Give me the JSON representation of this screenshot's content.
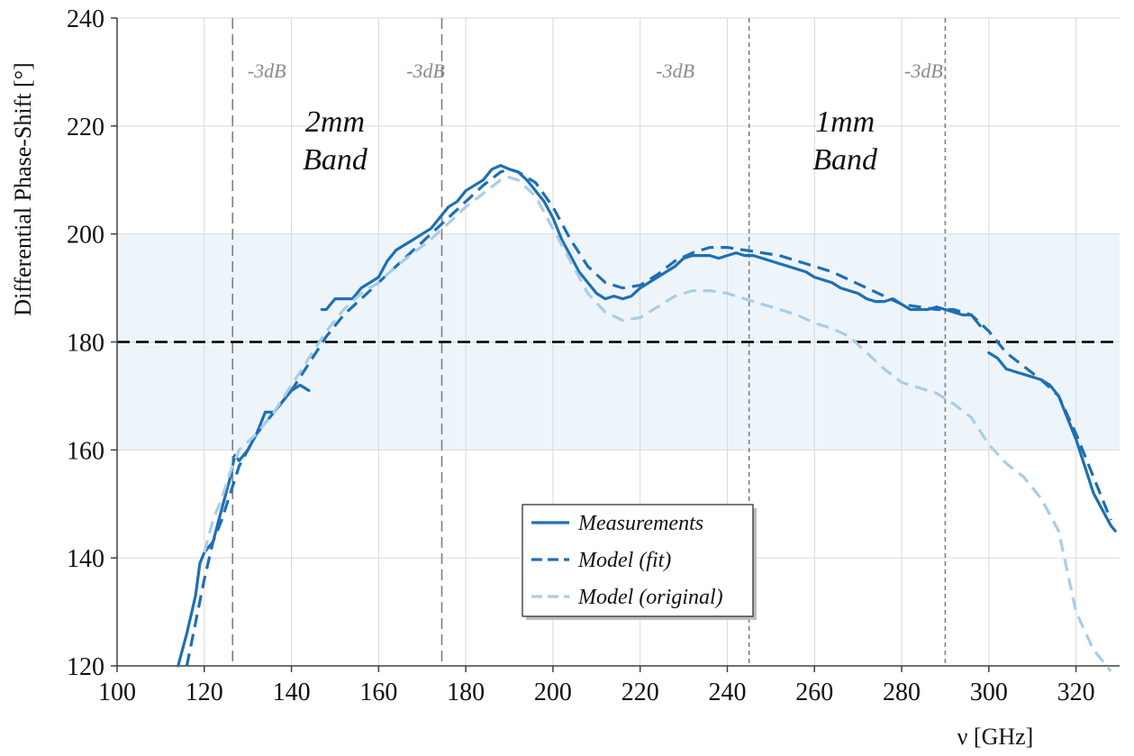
{
  "chart_data": {
    "type": "line",
    "title": "",
    "xlabel": "ν [GHz]",
    "ylabel": "Differential Phase-Shift [°]",
    "xlim": [
      100,
      330
    ],
    "ylim": [
      120,
      240
    ],
    "xticks": [
      100,
      120,
      140,
      160,
      180,
      200,
      220,
      240,
      260,
      280,
      300,
      320
    ],
    "yticks": [
      120,
      140,
      160,
      180,
      200,
      220,
      240
    ],
    "grid": true,
    "shaded_range": [
      160,
      200
    ],
    "reference_line": 180,
    "band_edges": [
      {
        "x": 126.5,
        "label": "-3dB"
      },
      {
        "x": 174.5,
        "label": "-3dB"
      },
      {
        "x": 245,
        "label": "-3dB"
      },
      {
        "x": 290,
        "label": "-3dB"
      }
    ],
    "band_labels": [
      {
        "line1": "2mm",
        "line2": "Band",
        "x": 150,
        "y": 218
      },
      {
        "line1": "1mm",
        "line2": "Band",
        "x": 267,
        "y": 218
      }
    ],
    "legend_position": "bottom-center",
    "series": [
      {
        "name": "Measurements",
        "style": "solid",
        "color": "#1f6fb4",
        "segments": [
          [
            [
              114,
              120
            ],
            [
              116,
              126
            ],
            [
              118,
              133
            ],
            [
              119,
              139
            ],
            [
              120,
              141
            ],
            [
              121,
              142
            ],
            [
              122,
              143
            ],
            [
              124,
              149
            ],
            [
              126,
              155
            ],
            [
              127,
              159
            ],
            [
              128,
              158
            ],
            [
              130,
              160
            ],
            [
              132,
              163
            ],
            [
              134,
              167
            ],
            [
              136,
              167
            ],
            [
              138,
              169
            ],
            [
              140,
              171
            ],
            [
              142,
              172
            ],
            [
              144,
              171
            ]
          ],
          [
            [
              147,
              186
            ],
            [
              148,
              186
            ],
            [
              150,
              188
            ],
            [
              152,
              188
            ],
            [
              154,
              188
            ],
            [
              156,
              190
            ],
            [
              158,
              191
            ],
            [
              160,
              192
            ],
            [
              162,
              195
            ],
            [
              164,
              197
            ],
            [
              166,
              198
            ],
            [
              168,
              199
            ],
            [
              170,
              200
            ],
            [
              172,
              201
            ],
            [
              174,
              203
            ],
            [
              176,
              205
            ],
            [
              178,
              206
            ],
            [
              180,
              208
            ],
            [
              182,
              209
            ],
            [
              184,
              210
            ],
            [
              186,
              212
            ],
            [
              188,
              212.7
            ],
            [
              190,
              212
            ],
            [
              192,
              211.5
            ],
            [
              194,
              210
            ],
            [
              196,
              208
            ],
            [
              198,
              206
            ],
            [
              200,
              203
            ],
            [
              202,
              199
            ],
            [
              204,
              196
            ],
            [
              206,
              193
            ],
            [
              208,
              191
            ],
            [
              210,
              189
            ],
            [
              212,
              188
            ],
            [
              214,
              188.5
            ],
            [
              216,
              188
            ],
            [
              218,
              188.5
            ],
            [
              220,
              190
            ],
            [
              222,
              191
            ],
            [
              224,
              192
            ],
            [
              226,
              193
            ],
            [
              228,
              194
            ],
            [
              230,
              195.5
            ],
            [
              232,
              196
            ],
            [
              234,
              196
            ],
            [
              236,
              196
            ],
            [
              238,
              195.5
            ],
            [
              240,
              196
            ],
            [
              242,
              196.5
            ],
            [
              244,
              196
            ],
            [
              246,
              196
            ],
            [
              248,
              195.5
            ],
            [
              250,
              195
            ],
            [
              252,
              194.5
            ],
            [
              254,
              194
            ],
            [
              256,
              193.5
            ],
            [
              258,
              193
            ],
            [
              260,
              192
            ],
            [
              262,
              191.5
            ],
            [
              264,
              191
            ],
            [
              266,
              190
            ],
            [
              268,
              189.5
            ],
            [
              270,
              189
            ],
            [
              272,
              188
            ],
            [
              274,
              187.5
            ],
            [
              276,
              187.5
            ],
            [
              278,
              188
            ],
            [
              280,
              187
            ],
            [
              282,
              186
            ],
            [
              284,
              186
            ],
            [
              286,
              186
            ],
            [
              288,
              186.5
            ],
            [
              290,
              186
            ],
            [
              292,
              185.5
            ],
            [
              294,
              185
            ],
            [
              296,
              185
            ],
            [
              298,
              183
            ]
          ],
          [
            [
              300,
              178
            ],
            [
              302,
              177
            ],
            [
              304,
              175
            ],
            [
              306,
              174.5
            ],
            [
              308,
              174
            ],
            [
              310,
              173.5
            ],
            [
              312,
              173
            ],
            [
              314,
              172
            ],
            [
              316,
              170
            ],
            [
              318,
              166
            ],
            [
              320,
              162
            ],
            [
              322,
              157
            ],
            [
              324,
              152
            ],
            [
              326,
              149
            ],
            [
              328,
              146
            ],
            [
              329,
              145
            ]
          ]
        ]
      },
      {
        "name": "Model (fit)",
        "style": "dashed",
        "color": "#1f6fb4",
        "segments": [
          [
            [
              116,
              120
            ],
            [
              118,
              128
            ],
            [
              120,
              136
            ],
            [
              122,
              143
            ],
            [
              124,
              147
            ],
            [
              126,
              152
            ],
            [
              128,
              157
            ],
            [
              130,
              160
            ],
            [
              132,
              163
            ],
            [
              136,
              167
            ],
            [
              140,
              171
            ],
            [
              144,
              176
            ],
            [
              148,
              181
            ],
            [
              152,
              185
            ],
            [
              156,
              188
            ],
            [
              160,
              191
            ],
            [
              164,
              194
            ],
            [
              168,
              197
            ],
            [
              172,
              200
            ],
            [
              176,
              203
            ],
            [
              180,
              206
            ],
            [
              184,
              209
            ],
            [
              188,
              211.5
            ],
            [
              190,
              212
            ],
            [
              192,
              211.5
            ],
            [
              196,
              209.5
            ],
            [
              200,
              205
            ],
            [
              204,
              199
            ],
            [
              208,
              194
            ],
            [
              212,
              191
            ],
            [
              216,
              190
            ],
            [
              220,
              190.5
            ],
            [
              224,
              192.5
            ],
            [
              228,
              195
            ],
            [
              232,
              196.5
            ],
            [
              236,
              197.5
            ],
            [
              240,
              197.5
            ],
            [
              244,
              197
            ],
            [
              248,
              196.5
            ],
            [
              252,
              196
            ],
            [
              256,
              195
            ],
            [
              260,
              194
            ],
            [
              264,
              193
            ],
            [
              268,
              191.5
            ],
            [
              272,
              190
            ],
            [
              276,
              188.5
            ],
            [
              280,
              187
            ],
            [
              284,
              186.5
            ],
            [
              288,
              186
            ],
            [
              292,
              186
            ],
            [
              296,
              185
            ],
            [
              300,
              182
            ],
            [
              304,
              178
            ],
            [
              308,
              175.5
            ],
            [
              312,
              173
            ],
            [
              316,
              170
            ],
            [
              320,
              163
            ],
            [
              324,
              155
            ],
            [
              328,
              147
            ]
          ]
        ]
      },
      {
        "name": "Model (original)",
        "style": "dashed",
        "color": "#a9cde8",
        "segments": [
          [
            [
              120,
              141
            ],
            [
              122,
              147
            ],
            [
              124,
              151
            ],
            [
              126,
              156
            ],
            [
              128,
              160
            ],
            [
              132,
              163
            ],
            [
              136,
              167
            ],
            [
              140,
              172
            ],
            [
              144,
              177
            ],
            [
              148,
              182
            ],
            [
              152,
              186
            ],
            [
              156,
              189
            ],
            [
              160,
              191
            ],
            [
              164,
              194
            ],
            [
              168,
              196.5
            ],
            [
              172,
              199
            ],
            [
              176,
              202
            ],
            [
              180,
              205
            ],
            [
              184,
              207.5
            ],
            [
              188,
              210
            ],
            [
              190,
              210.5
            ],
            [
              192,
              210
            ],
            [
              196,
              207
            ],
            [
              200,
              201
            ],
            [
              204,
              195
            ],
            [
              208,
              189
            ],
            [
              212,
              185.5
            ],
            [
              216,
              184
            ],
            [
              220,
              184.5
            ],
            [
              224,
              186.5
            ],
            [
              228,
              188.5
            ],
            [
              232,
              189.5
            ],
            [
              236,
              189.5
            ],
            [
              240,
              189
            ],
            [
              244,
              188
            ],
            [
              248,
              187
            ],
            [
              252,
              186
            ],
            [
              256,
              185
            ],
            [
              260,
              183.5
            ],
            [
              264,
              182.5
            ],
            [
              268,
              181
            ],
            [
              272,
              178
            ],
            [
              276,
              175
            ],
            [
              280,
              172.5
            ],
            [
              284,
              171.5
            ],
            [
              288,
              170.5
            ],
            [
              292,
              168.5
            ],
            [
              296,
              166
            ],
            [
              300,
              161
            ],
            [
              304,
              157.5
            ],
            [
              308,
              155
            ],
            [
              312,
              151
            ],
            [
              316,
              145
            ],
            [
              320,
              130
            ],
            [
              324,
              123
            ],
            [
              328,
              119
            ]
          ]
        ]
      }
    ]
  }
}
